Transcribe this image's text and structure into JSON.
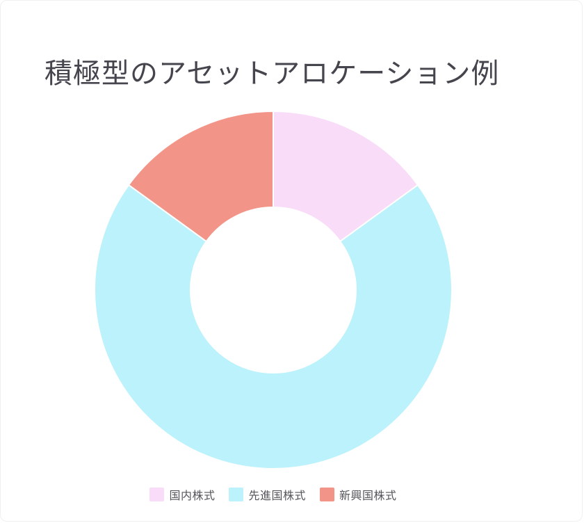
{
  "page": {
    "background": "#ffffff"
  },
  "header": {
    "title": "積極型のアセットアロケーション例",
    "title_color": "#45454d"
  },
  "chart_data": {
    "type": "pie",
    "subtype": "doughnut",
    "title": "積極型のアセットアロケーション例",
    "labels": [
      "国内株式",
      "先進国株式",
      "新興国株式"
    ],
    "values_percent": [
      15,
      70,
      15
    ],
    "colors": [
      "#f8dcf8",
      "#bcf2fb",
      "#f39488"
    ],
    "start_angle_deg": 0,
    "direction": "clockwise",
    "cutout_ratio": 0.463,
    "border_color": "#ffffff",
    "border_width": 2,
    "legend_position": "bottom",
    "data_labels_shown": false
  },
  "legend": {
    "text_color": "#54545b",
    "items": [
      {
        "label": "国内株式",
        "color": "#f8dcf8"
      },
      {
        "label": "先進国株式",
        "color": "#bcf2fb"
      },
      {
        "label": "新興国株式",
        "color": "#f39488"
      }
    ]
  }
}
